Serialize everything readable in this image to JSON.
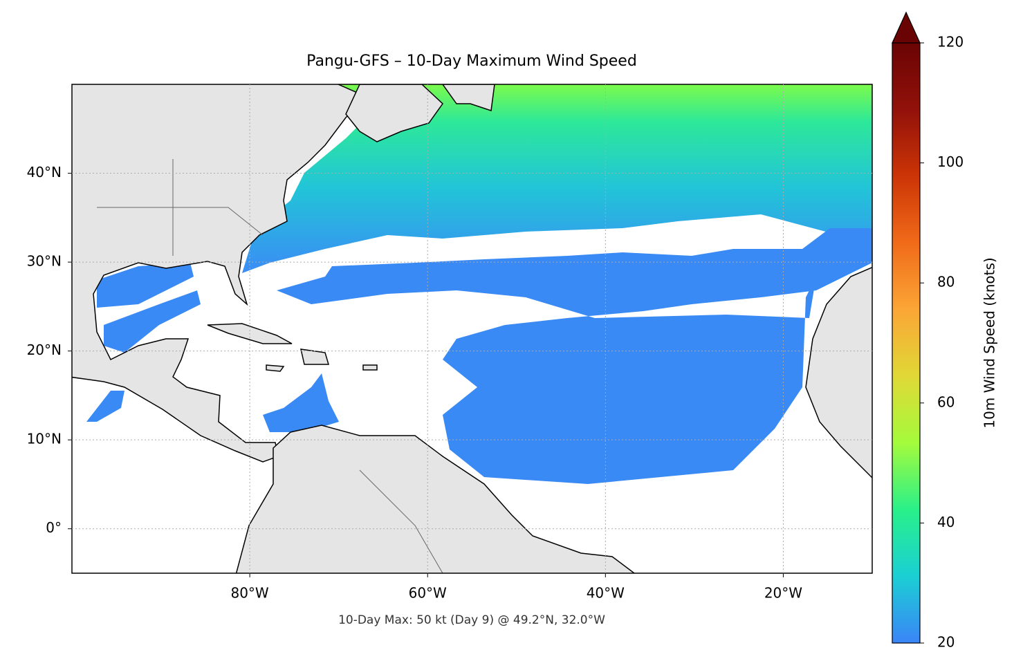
{
  "chart_data": {
    "type": "map",
    "title": "Pangu-GFS – 10-Day Maximum Wind Speed",
    "footnote": "10-Day Max: 50 kt (Day 9) @ 49.2°N, 32.0°W",
    "xlim": [
      -100,
      -10
    ],
    "ylim": [
      -5,
      50
    ],
    "xticks": [
      {
        "value": -80,
        "label": "80°W"
      },
      {
        "value": -60,
        "label": "60°W"
      },
      {
        "value": -40,
        "label": "40°W"
      },
      {
        "value": -20,
        "label": "20°W"
      }
    ],
    "yticks": [
      {
        "value": 0,
        "label": "0°"
      },
      {
        "value": 10,
        "label": "10°N"
      },
      {
        "value": 20,
        "label": "20°N"
      },
      {
        "value": 30,
        "label": "30°N"
      },
      {
        "value": 40,
        "label": "40°N"
      }
    ],
    "grid": true,
    "colorbar": {
      "label": "10m Wind Speed (knots)",
      "lim": [
        20,
        120
      ],
      "ticks": [
        20,
        40,
        60,
        80,
        100,
        120
      ],
      "colormap": "turbo",
      "extend": "max"
    }
  }
}
